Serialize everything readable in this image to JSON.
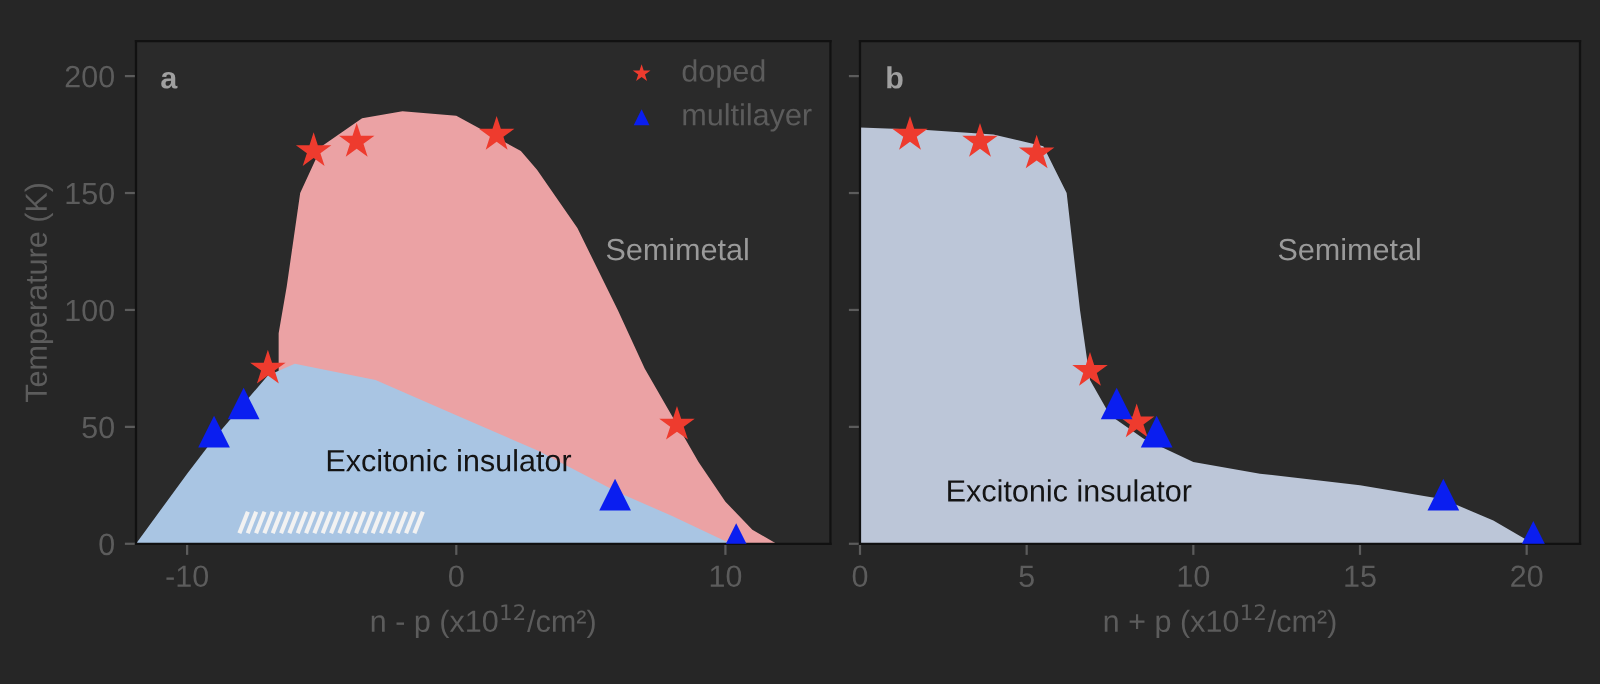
{
  "chart_data": [
    {
      "type": "scatter",
      "xlabel": "n - p (x10$^{12}$/cm²)",
      "ylabel": "Temperature (K)",
      "xlim": [
        -11.9,
        13.9
      ],
      "ylim": [
        0,
        215
      ],
      "xticks": [
        -10,
        0,
        10
      ],
      "yticks": [
        0,
        50,
        100,
        150,
        200
      ],
      "legend": "top right",
      "grid": false,
      "annotations": [
        "a",
        "Semimetal",
        "Excitonic insulator"
      ],
      "series": [
        {
          "type": "area",
          "color": "#eba2a4",
          "x": [
            -6.6,
            -6.3,
            -5.8,
            -5,
            -3.5,
            -2,
            0,
            2.4,
            3,
            4.5,
            6,
            7,
            8,
            9,
            10,
            11,
            11.9
          ],
          "values": [
            90,
            110,
            150,
            170,
            182,
            185,
            183,
            168,
            160,
            135,
            100,
            75,
            55,
            35,
            18,
            6,
            0
          ]
        },
        {
          "type": "area",
          "color": "#a9c5e3",
          "x": [
            -11.9,
            -10,
            -9,
            -7,
            -6,
            -3,
            0,
            3,
            6,
            8,
            10.2
          ],
          "values": [
            0,
            30,
            45,
            72,
            77,
            70,
            55,
            40,
            22,
            12,
            0
          ]
        },
        {
          "name": "doped",
          "color": "#ee3b2e",
          "marker": "star",
          "x": [
            -7,
            -5.3,
            -3.7,
            1.5,
            8.2
          ],
          "values": [
            75,
            168,
            172,
            175,
            51
          ]
        },
        {
          "name": "multilayer",
          "color": "#0a1ef0",
          "marker": "triangle",
          "x": [
            -9,
            -7.9,
            5.9,
            10.4
          ],
          "values": [
            48,
            60,
            21,
            2
          ]
        }
      ]
    },
    {
      "type": "scatter",
      "xlabel": "n + p (x10$^{12}$/cm²)",
      "xlim": [
        0,
        21.6
      ],
      "ylim": [
        0,
        215
      ],
      "xticks": [
        0,
        5,
        10,
        15,
        20
      ],
      "yticks": [
        0,
        50,
        100,
        150,
        200
      ],
      "tick_labels": "x",
      "grid": false,
      "annotations": [
        "b",
        "Semimetal",
        "Excitonic insulator"
      ],
      "series": [
        {
          "type": "area",
          "color": "#bcc6d8",
          "x": [
            0,
            2,
            4,
            5.5,
            6.2,
            6.6,
            6.9,
            7.5,
            8.5,
            10,
            12,
            15,
            17.5,
            19,
            20.2
          ],
          "values": [
            178,
            177,
            175,
            170,
            150,
            100,
            70,
            55,
            45,
            35,
            30,
            25,
            19,
            10,
            0
          ]
        },
        {
          "color": "#ee3b2e",
          "marker": "star",
          "x": [
            1.5,
            3.6,
            5.3,
            6.9,
            8.3
          ],
          "values": [
            175,
            172,
            167,
            74,
            52
          ]
        },
        {
          "color": "#0a1ef0",
          "marker": "triangle",
          "x": [
            7.7,
            8.9,
            17.5,
            20.2
          ],
          "values": [
            60,
            48,
            21,
            3
          ]
        }
      ]
    }
  ]
}
